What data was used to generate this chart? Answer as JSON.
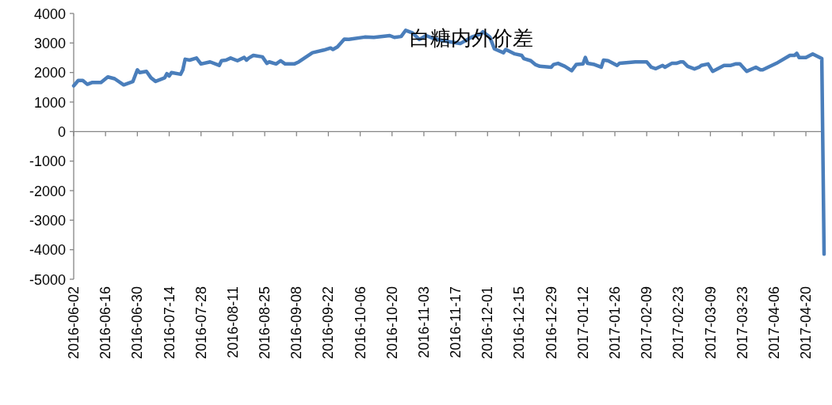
{
  "chart_data": {
    "type": "line",
    "title": "白糖内外价差",
    "x": [
      "2016-06-02",
      "2016-06-04",
      "2016-06-06",
      "2016-06-08",
      "2016-06-10",
      "2016-06-14",
      "2016-06-17",
      "2016-06-20",
      "2016-06-24",
      "2016-06-28",
      "2016-06-30",
      "2016-07-01",
      "2016-07-04",
      "2016-07-06",
      "2016-07-08",
      "2016-07-12",
      "2016-07-13",
      "2016-07-14",
      "2016-07-15",
      "2016-07-19",
      "2016-07-20",
      "2016-07-21",
      "2016-07-23",
      "2016-07-26",
      "2016-07-28",
      "2016-08-01",
      "2016-08-05",
      "2016-08-06",
      "2016-08-08",
      "2016-08-10",
      "2016-08-13",
      "2016-08-16",
      "2016-08-17",
      "2016-08-18",
      "2016-08-20",
      "2016-08-24",
      "2016-08-26",
      "2016-08-27",
      "2016-08-30",
      "2016-09-01",
      "2016-09-03",
      "2016-09-07",
      "2016-09-09",
      "2016-09-15",
      "2016-09-20",
      "2016-09-23",
      "2016-09-24",
      "2016-09-26",
      "2016-09-29",
      "2016-10-01",
      "2016-10-08",
      "2016-10-12",
      "2016-10-19",
      "2016-10-21",
      "2016-10-24",
      "2016-10-26",
      "2016-10-29",
      "2016-11-01",
      "2016-11-04",
      "2016-11-07",
      "2016-11-12",
      "2016-11-19",
      "2016-11-24",
      "2016-11-28",
      "2016-11-29",
      "2016-12-02",
      "2016-12-04",
      "2016-12-08",
      "2016-12-09",
      "2016-12-13",
      "2016-12-16",
      "2016-12-17",
      "2016-12-20",
      "2016-12-22",
      "2016-12-24",
      "2016-12-29",
      "2016-12-30",
      "2017-01-01",
      "2017-01-04",
      "2017-01-07",
      "2017-01-09",
      "2017-01-12",
      "2017-01-13",
      "2017-01-14",
      "2017-01-17",
      "2017-01-20",
      "2017-01-21",
      "2017-01-23",
      "2017-01-27",
      "2017-01-28",
      "2017-02-04",
      "2017-02-09",
      "2017-02-11",
      "2017-02-13",
      "2017-02-16",
      "2017-02-17",
      "2017-02-20",
      "2017-02-22",
      "2017-02-24",
      "2017-02-25",
      "2017-02-27",
      "2017-03-02",
      "2017-03-04",
      "2017-03-05",
      "2017-03-08",
      "2017-03-10",
      "2017-03-15",
      "2017-03-18",
      "2017-03-20",
      "2017-03-22",
      "2017-03-25",
      "2017-03-29",
      "2017-03-31",
      "2017-04-01",
      "2017-04-07",
      "2017-04-13",
      "2017-04-15",
      "2017-04-16",
      "2017-04-17",
      "2017-04-20",
      "2017-04-23",
      "2017-04-27",
      "2017-04-28"
    ],
    "series": [
      {
        "color": "#4a7ebb",
        "values": [
          1550,
          1730,
          1730,
          1600,
          1660,
          1660,
          1850,
          1790,
          1580,
          1690,
          2090,
          2000,
          2040,
          1820,
          1700,
          1820,
          1960,
          1880,
          2000,
          1940,
          2090,
          2450,
          2420,
          2490,
          2290,
          2360,
          2240,
          2400,
          2420,
          2490,
          2400,
          2510,
          2420,
          2490,
          2580,
          2530,
          2310,
          2360,
          2290,
          2400,
          2290,
          2290,
          2360,
          2670,
          2760,
          2830,
          2780,
          2870,
          3130,
          3120,
          3200,
          3190,
          3250,
          3190,
          3220,
          3430,
          3340,
          3120,
          3250,
          3160,
          3070,
          2980,
          3200,
          3300,
          3380,
          3200,
          2800,
          2670,
          2780,
          2630,
          2580,
          2470,
          2400,
          2270,
          2210,
          2180,
          2270,
          2310,
          2210,
          2060,
          2270,
          2290,
          2510,
          2310,
          2270,
          2180,
          2420,
          2400,
          2240,
          2310,
          2360,
          2360,
          2180,
          2130,
          2240,
          2180,
          2310,
          2310,
          2360,
          2360,
          2210,
          2120,
          2180,
          2240,
          2290,
          2040,
          2240,
          2240,
          2290,
          2290,
          2040,
          2180,
          2090,
          2090,
          2310,
          2580,
          2580,
          2650,
          2510,
          2510,
          2630,
          2470,
          -4150
        ]
      }
    ],
    "xlim": [
      "2016-06-02",
      "2017-04-28"
    ],
    "xticks": [
      "2016-06-02",
      "2016-06-16",
      "2016-06-30",
      "2016-07-14",
      "2016-07-28",
      "2016-08-11",
      "2016-08-25",
      "2016-09-08",
      "2016-09-22",
      "2016-10-06",
      "2016-10-20",
      "2016-11-03",
      "2016-11-17",
      "2016-12-01",
      "2016-12-15",
      "2016-12-29",
      "2017-01-12",
      "2017-01-26",
      "2017-02-09",
      "2017-02-23",
      "2017-03-09",
      "2017-03-23",
      "2017-04-06",
      "2017-04-20"
    ],
    "ylim": [
      -5000,
      4000
    ],
    "yticks": [
      -5000,
      -4000,
      -3000,
      -2000,
      -1000,
      0,
      1000,
      2000,
      3000,
      4000
    ],
    "marker": "none",
    "line_style": "solid"
  }
}
